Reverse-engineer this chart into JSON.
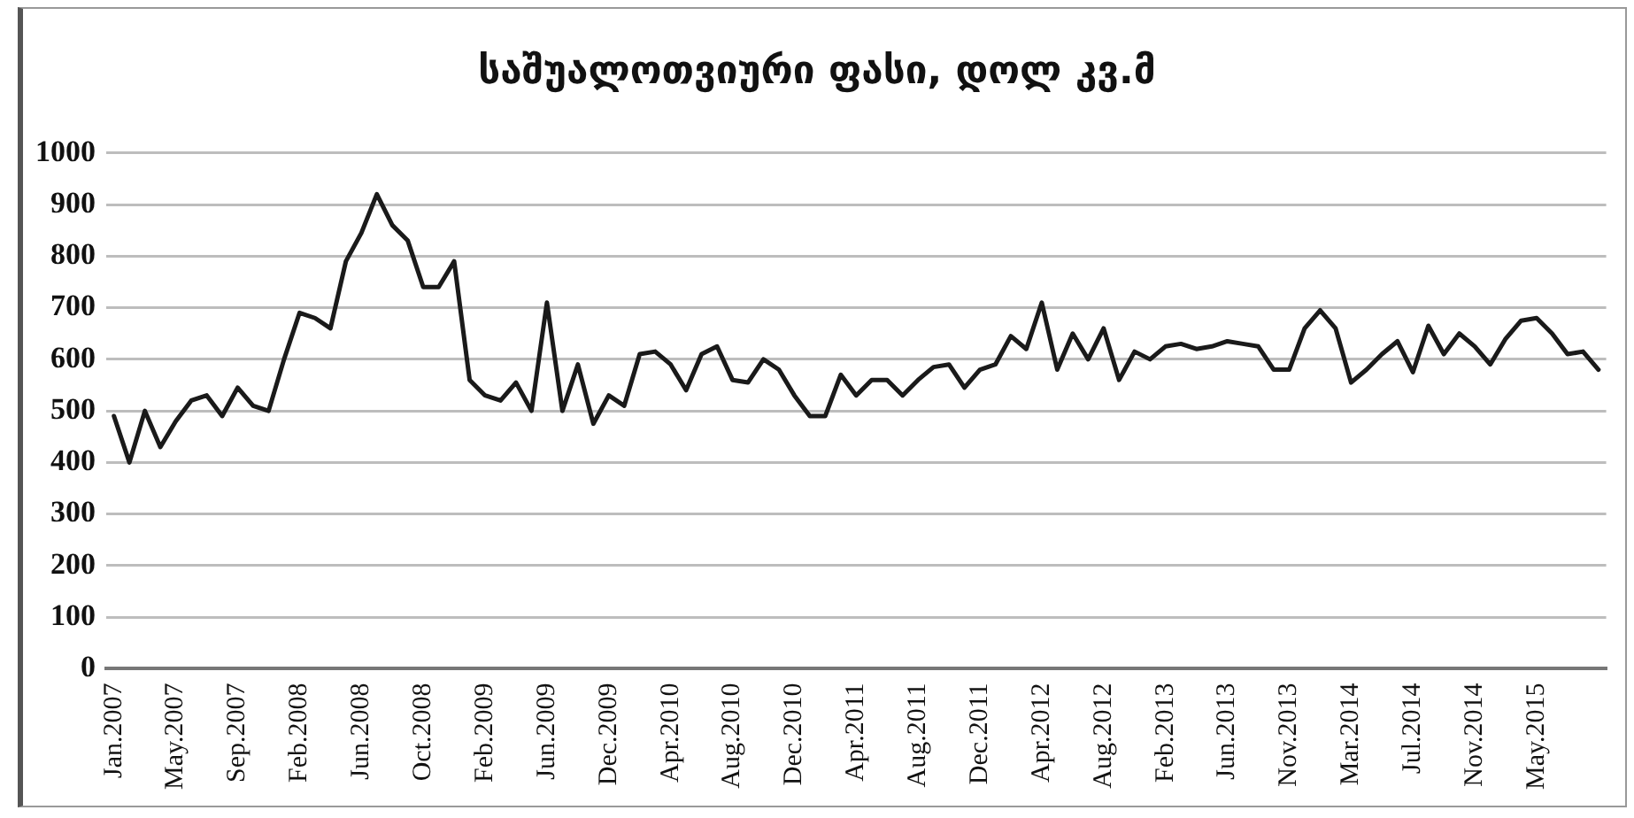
{
  "chart_data": {
    "type": "line",
    "title": "საშუალოთვიური ფასი, დოლ კვ.მ",
    "categories": [
      "Jan.2007",
      null,
      null,
      null,
      "May.2007",
      null,
      null,
      null,
      "Sep.2007",
      null,
      null,
      null,
      "Feb.2008",
      null,
      null,
      null,
      "Jun.2008",
      null,
      null,
      null,
      "Oct.2008",
      null,
      null,
      null,
      "Feb.2009",
      null,
      null,
      null,
      "Jun.2009",
      null,
      null,
      null,
      "Dec.2009",
      null,
      null,
      null,
      "Apr.2010",
      null,
      null,
      null,
      "Aug.2010",
      null,
      null,
      null,
      "Dec.2010",
      null,
      null,
      null,
      "Apr.2011",
      null,
      null,
      null,
      "Aug.2011",
      null,
      null,
      null,
      "Dec.2011",
      null,
      null,
      null,
      "Apr.2012",
      null,
      null,
      null,
      "Aug.2012",
      null,
      null,
      null,
      "Feb.2013",
      null,
      null,
      null,
      "Jun.2013",
      null,
      null,
      null,
      "Nov.2013",
      null,
      null,
      null,
      "Mar.2014",
      null,
      null,
      null,
      "Jul.2014",
      null,
      null,
      null,
      "Nov.2014",
      null,
      null,
      null,
      "May.2015",
      null,
      null,
      null,
      null
    ],
    "series": [
      {
        "color": "#1a1a1a",
        "values": [
          490,
          400,
          500,
          430,
          480,
          520,
          530,
          490,
          545,
          510,
          500,
          600,
          690,
          680,
          660,
          790,
          845,
          920,
          860,
          830,
          740,
          740,
          790,
          560,
          530,
          520,
          555,
          500,
          710,
          500,
          590,
          475,
          530,
          510,
          610,
          615,
          590,
          540,
          610,
          625,
          560,
          555,
          600,
          580,
          530,
          490,
          490,
          570,
          530,
          560,
          560,
          530,
          560,
          585,
          590,
          545,
          580,
          590,
          645,
          620,
          710,
          580,
          650,
          600,
          660,
          560,
          615,
          600,
          625,
          630,
          620,
          625,
          635,
          630,
          625,
          580,
          580,
          660,
          695,
          660,
          555,
          580,
          610,
          635,
          575,
          665,
          610,
          650,
          625,
          590,
          640,
          675,
          680,
          650,
          610,
          615,
          580
        ]
      }
    ],
    "ylim": [
      0,
      1000
    ],
    "yticks": [
      0,
      100,
      200,
      300,
      400,
      500,
      600,
      700,
      800,
      900,
      1000
    ],
    "grid": "y",
    "legend": false,
    "marker": "none",
    "line_style": "solid"
  }
}
